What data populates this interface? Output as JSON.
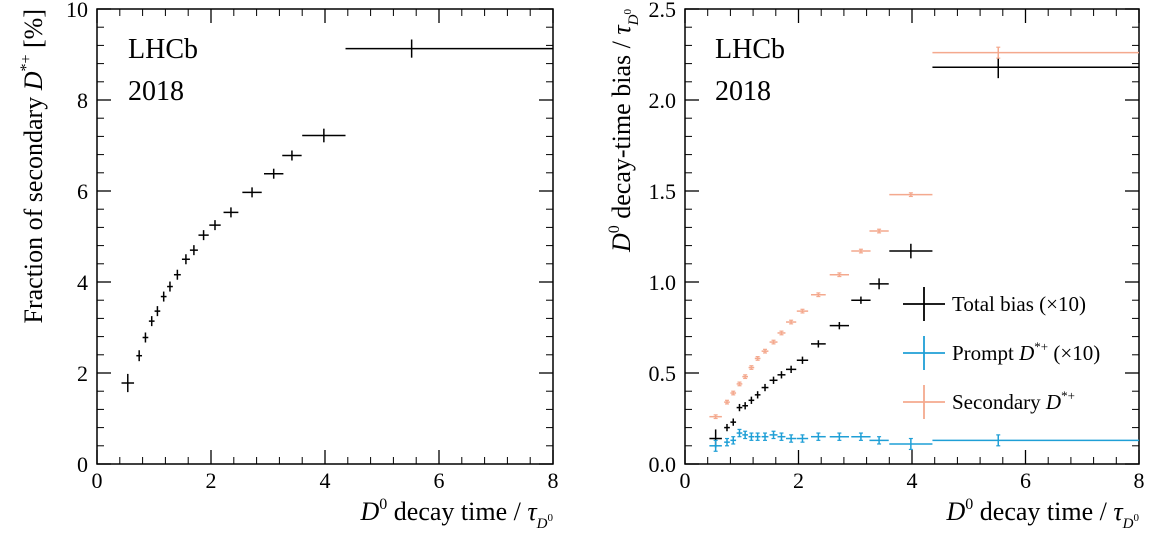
{
  "chart_data": [
    {
      "type": "scatter",
      "annotation": [
        "LHCb",
        "2018"
      ],
      "xlabel": "D0 decay time / τD0",
      "ylabel": "Fraction of secondary D*+ [%]",
      "xlim": [
        0,
        8
      ],
      "ylim": [
        0,
        10
      ],
      "xticks": [
        "0",
        "2",
        "4",
        "6",
        "8"
      ],
      "yticks": [
        "0",
        "2",
        "4",
        "6",
        "8",
        "10"
      ],
      "grid": false,
      "series": [
        {
          "color": "#000000",
          "points": [
            {
              "x": 0.54,
              "y": 1.78,
              "xerr": 0.11,
              "yerr": 0.2
            },
            {
              "x": 0.74,
              "y": 2.38,
              "xerr": 0.05,
              "yerr": 0.12
            },
            {
              "x": 0.85,
              "y": 2.78,
              "xerr": 0.05,
              "yerr": 0.11
            },
            {
              "x": 0.96,
              "y": 3.14,
              "xerr": 0.05,
              "yerr": 0.11
            },
            {
              "x": 1.06,
              "y": 3.36,
              "xerr": 0.05,
              "yerr": 0.11
            },
            {
              "x": 1.17,
              "y": 3.68,
              "xerr": 0.05,
              "yerr": 0.11
            },
            {
              "x": 1.28,
              "y": 3.9,
              "xerr": 0.05,
              "yerr": 0.11
            },
            {
              "x": 1.41,
              "y": 4.16,
              "xerr": 0.06,
              "yerr": 0.11
            },
            {
              "x": 1.56,
              "y": 4.5,
              "xerr": 0.07,
              "yerr": 0.11
            },
            {
              "x": 1.7,
              "y": 4.7,
              "xerr": 0.07,
              "yerr": 0.11
            },
            {
              "x": 1.87,
              "y": 5.03,
              "xerr": 0.09,
              "yerr": 0.11
            },
            {
              "x": 2.07,
              "y": 5.25,
              "xerr": 0.1,
              "yerr": 0.11
            },
            {
              "x": 2.35,
              "y": 5.53,
              "xerr": 0.13,
              "yerr": 0.11
            },
            {
              "x": 2.72,
              "y": 5.97,
              "xerr": 0.17,
              "yerr": 0.11
            },
            {
              "x": 3.1,
              "y": 6.38,
              "xerr": 0.17,
              "yerr": 0.11
            },
            {
              "x": 3.42,
              "y": 6.78,
              "xerr": 0.17,
              "yerr": 0.11
            },
            {
              "x": 3.98,
              "y": 7.22,
              "xerr": 0.38,
              "yerr": 0.15
            },
            {
              "x": 5.52,
              "y": 9.13,
              "xlo": 4.36,
              "xhi": 8.0,
              "yerr": 0.2
            }
          ]
        }
      ]
    },
    {
      "type": "scatter",
      "annotation": [
        "LHCb",
        "2018"
      ],
      "xlabel": "D0 decay time / τD0",
      "ylabel": "D0 decay-time bias / τD0",
      "xlim": [
        0,
        8
      ],
      "ylim": [
        0,
        2.5
      ],
      "xticks": [
        "0",
        "2",
        "4",
        "6",
        "8"
      ],
      "yticks": [
        "0.0",
        "0.5",
        "1.0",
        "1.5",
        "2.0",
        "2.5"
      ],
      "grid": false,
      "legend": "center-right",
      "series": [
        {
          "name": "Total bias (×10)",
          "color": "#000000",
          "points": [
            {
              "x": 0.54,
              "y": 0.14,
              "xerr": 0.11,
              "yerr": 0.05
            },
            {
              "x": 0.74,
              "y": 0.2,
              "xerr": 0.05,
              "yerr": 0.02
            },
            {
              "x": 0.85,
              "y": 0.23,
              "xerr": 0.05,
              "yerr": 0.02
            },
            {
              "x": 0.96,
              "y": 0.31,
              "xerr": 0.05,
              "yerr": 0.02
            },
            {
              "x": 1.06,
              "y": 0.32,
              "xerr": 0.05,
              "yerr": 0.02
            },
            {
              "x": 1.17,
              "y": 0.35,
              "xerr": 0.05,
              "yerr": 0.02
            },
            {
              "x": 1.28,
              "y": 0.38,
              "xerr": 0.05,
              "yerr": 0.02
            },
            {
              "x": 1.41,
              "y": 0.42,
              "xerr": 0.06,
              "yerr": 0.02
            },
            {
              "x": 1.56,
              "y": 0.46,
              "xerr": 0.07,
              "yerr": 0.02
            },
            {
              "x": 1.7,
              "y": 0.49,
              "xerr": 0.07,
              "yerr": 0.02
            },
            {
              "x": 1.87,
              "y": 0.52,
              "xerr": 0.09,
              "yerr": 0.02
            },
            {
              "x": 2.07,
              "y": 0.57,
              "xerr": 0.1,
              "yerr": 0.02
            },
            {
              "x": 2.35,
              "y": 0.66,
              "xerr": 0.13,
              "yerr": 0.02
            },
            {
              "x": 2.72,
              "y": 0.76,
              "xerr": 0.17,
              "yerr": 0.02
            },
            {
              "x": 3.1,
              "y": 0.9,
              "xerr": 0.17,
              "yerr": 0.02
            },
            {
              "x": 3.42,
              "y": 0.99,
              "xerr": 0.17,
              "yerr": 0.03
            },
            {
              "x": 3.98,
              "y": 1.17,
              "xerr": 0.38,
              "yerr": 0.04
            },
            {
              "x": 5.52,
              "y": 2.18,
              "xlo": 4.36,
              "xhi": 8.0,
              "yerr": 0.06
            }
          ]
        },
        {
          "name": "Prompt D*+ (×10)",
          "color": "#1f9fd6",
          "points": [
            {
              "x": 0.54,
              "y": 0.1,
              "xerr": 0.11,
              "yerr": 0.03
            },
            {
              "x": 0.74,
              "y": 0.12,
              "xerr": 0.05,
              "yerr": 0.02
            },
            {
              "x": 0.85,
              "y": 0.13,
              "xerr": 0.05,
              "yerr": 0.02
            },
            {
              "x": 0.96,
              "y": 0.17,
              "xerr": 0.05,
              "yerr": 0.02
            },
            {
              "x": 1.06,
              "y": 0.16,
              "xerr": 0.05,
              "yerr": 0.02
            },
            {
              "x": 1.17,
              "y": 0.15,
              "xerr": 0.05,
              "yerr": 0.02
            },
            {
              "x": 1.28,
              "y": 0.15,
              "xerr": 0.05,
              "yerr": 0.02
            },
            {
              "x": 1.41,
              "y": 0.15,
              "xerr": 0.06,
              "yerr": 0.02
            },
            {
              "x": 1.56,
              "y": 0.16,
              "xerr": 0.07,
              "yerr": 0.02
            },
            {
              "x": 1.7,
              "y": 0.15,
              "xerr": 0.07,
              "yerr": 0.02
            },
            {
              "x": 1.87,
              "y": 0.14,
              "xerr": 0.09,
              "yerr": 0.02
            },
            {
              "x": 2.07,
              "y": 0.14,
              "xerr": 0.1,
              "yerr": 0.02
            },
            {
              "x": 2.35,
              "y": 0.15,
              "xerr": 0.13,
              "yerr": 0.02
            },
            {
              "x": 2.72,
              "y": 0.15,
              "xerr": 0.17,
              "yerr": 0.02
            },
            {
              "x": 3.1,
              "y": 0.15,
              "xerr": 0.17,
              "yerr": 0.02
            },
            {
              "x": 3.42,
              "y": 0.13,
              "xerr": 0.17,
              "yerr": 0.02
            },
            {
              "x": 3.98,
              "y": 0.11,
              "xerr": 0.38,
              "yerr": 0.03
            },
            {
              "x": 5.52,
              "y": 0.13,
              "xlo": 4.36,
              "xhi": 8.0,
              "yerr": 0.03
            }
          ]
        },
        {
          "name": "Secondary D*+",
          "color": "#f4a98e",
          "points": [
            {
              "x": 0.54,
              "y": 0.26,
              "xerr": 0.11,
              "yerr": 0.01
            },
            {
              "x": 0.74,
              "y": 0.34,
              "xerr": 0.05,
              "yerr": 0.01
            },
            {
              "x": 0.85,
              "y": 0.39,
              "xerr": 0.05,
              "yerr": 0.01
            },
            {
              "x": 0.96,
              "y": 0.44,
              "xerr": 0.05,
              "yerr": 0.01
            },
            {
              "x": 1.06,
              "y": 0.48,
              "xerr": 0.05,
              "yerr": 0.01
            },
            {
              "x": 1.17,
              "y": 0.53,
              "xerr": 0.05,
              "yerr": 0.01
            },
            {
              "x": 1.28,
              "y": 0.58,
              "xerr": 0.05,
              "yerr": 0.01
            },
            {
              "x": 1.41,
              "y": 0.62,
              "xerr": 0.06,
              "yerr": 0.01
            },
            {
              "x": 1.56,
              "y": 0.67,
              "xerr": 0.07,
              "yerr": 0.01
            },
            {
              "x": 1.7,
              "y": 0.72,
              "xerr": 0.07,
              "yerr": 0.01
            },
            {
              "x": 1.87,
              "y": 0.78,
              "xerr": 0.09,
              "yerr": 0.01
            },
            {
              "x": 2.07,
              "y": 0.84,
              "xerr": 0.1,
              "yerr": 0.01
            },
            {
              "x": 2.35,
              "y": 0.93,
              "xerr": 0.13,
              "yerr": 0.01
            },
            {
              "x": 2.72,
              "y": 1.04,
              "xerr": 0.17,
              "yerr": 0.01
            },
            {
              "x": 3.1,
              "y": 1.17,
              "xerr": 0.17,
              "yerr": 0.01
            },
            {
              "x": 3.42,
              "y": 1.28,
              "xerr": 0.17,
              "yerr": 0.01
            },
            {
              "x": 3.98,
              "y": 1.48,
              "xerr": 0.38,
              "yerr": 0.01
            },
            {
              "x": 5.52,
              "y": 2.26,
              "xlo": 4.36,
              "xhi": 8.0,
              "yerr": 0.03
            }
          ]
        }
      ]
    }
  ]
}
